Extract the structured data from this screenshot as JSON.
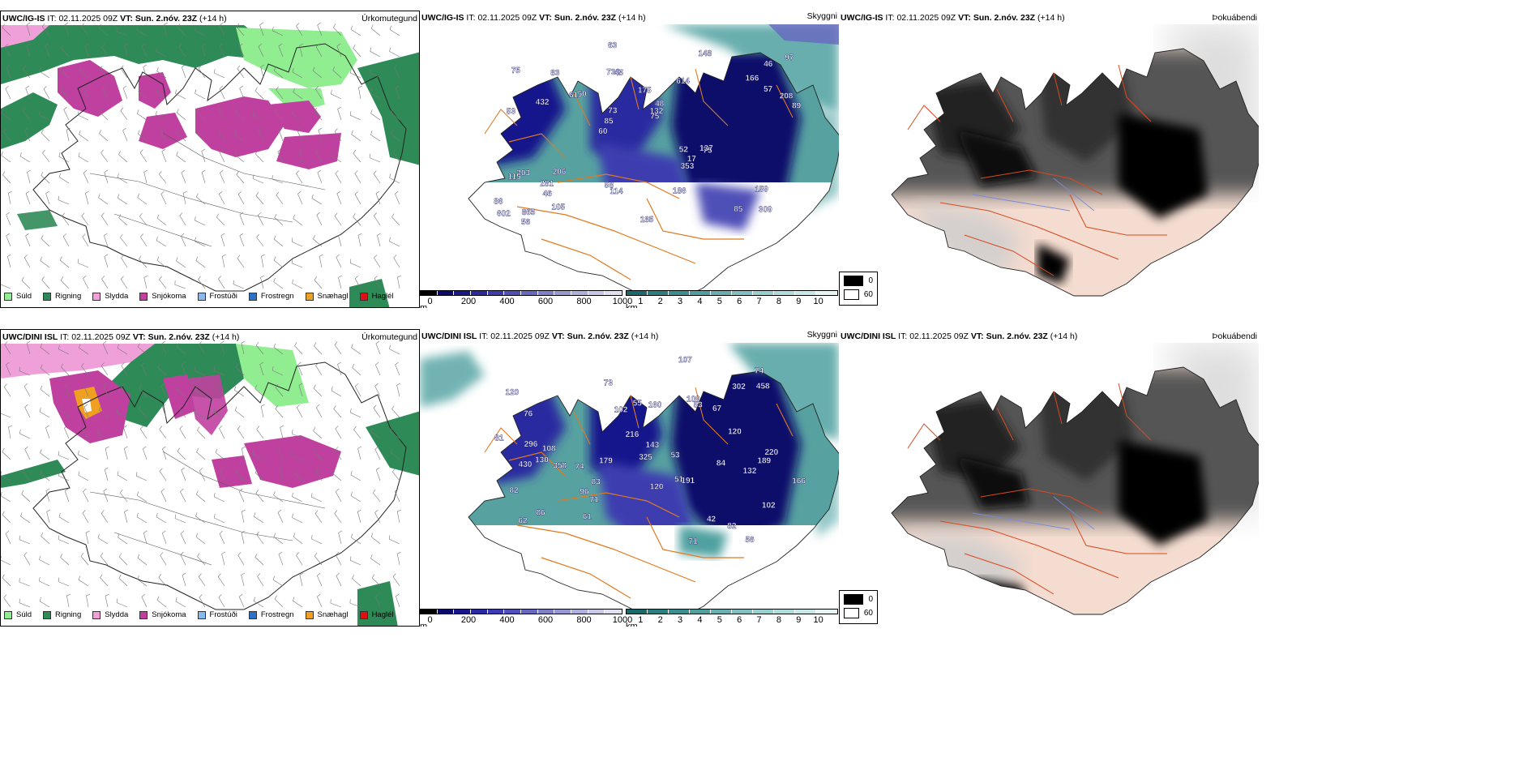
{
  "rows": [
    {
      "model": "UWC/IG-IS",
      "it_label": "IT:",
      "it_value": "02.11.2025 09Z",
      "vt_label": "VT:",
      "vt_value": "Sun. 2.nóv. 23Z",
      "lead": "(+14 h)"
    },
    {
      "model": "UWC/DINI ISL",
      "it_label": "IT:",
      "it_value": "02.11.2025 09Z",
      "vt_label": "VT:",
      "vt_value": "Sun. 2.nóv. 23Z",
      "lead": "(+14 h)"
    }
  ],
  "panels": {
    "precip_title": "Úrkomutegund",
    "cloud_title": "Skyggni",
    "fog_title": "Þokuábendi"
  },
  "precip_legend": [
    {
      "label": "Súld",
      "color": "#90ee90"
    },
    {
      "label": "Rigning",
      "color": "#2e8b57"
    },
    {
      "label": "Slydda",
      "color": "#f0a0d8"
    },
    {
      "label": "Snjókoma",
      "color": "#c040a0"
    },
    {
      "label": "Frostúði",
      "color": "#87b8f0"
    },
    {
      "label": "Frostregn",
      "color": "#3070c8"
    },
    {
      "label": "Snæhagl",
      "color": "#f0a020"
    },
    {
      "label": "Haglél",
      "color": "#e01010"
    }
  ],
  "ceiling_bar": {
    "unit": "m",
    "ticks": [
      "0",
      "200",
      "400",
      "600",
      "800",
      "1000"
    ],
    "colors": [
      "#000000",
      "#0a0a6a",
      "#18188c",
      "#2a2aa0",
      "#3c3cb0",
      "#5050b8",
      "#6868c0",
      "#8080c8",
      "#9898d0",
      "#b0b0dc",
      "#c8c8e6",
      "#e0e0f0"
    ]
  },
  "vis_bar": {
    "unit": "km",
    "ticks": [
      "1",
      "2",
      "3",
      "4",
      "5",
      "6",
      "7",
      "8",
      "9",
      "10"
    ],
    "colors": [
      "#1a6a6a",
      "#2a8080",
      "#3a9090",
      "#50a0a0",
      "#68b0b0",
      "#80c0c0",
      "#98d0d0",
      "#b0dcdc",
      "#c8e8e8",
      "#e6f4f4"
    ]
  },
  "fog_legend": [
    {
      "label": "0",
      "color": "#000000"
    },
    {
      "label": "60",
      "color": "#ffffff"
    }
  ],
  "ceiling_labels_top": [
    "309",
    "53",
    "46",
    "60",
    "614",
    "865",
    "736",
    "175",
    "303",
    "50",
    "86",
    "46",
    "45",
    "48",
    "75",
    "75",
    "63",
    "89",
    "52",
    "57",
    "85",
    "58",
    "73",
    "83",
    "148",
    "206",
    "85",
    "159",
    "137",
    "185",
    "61",
    "432",
    "353",
    "105",
    "208",
    "132",
    "602",
    "114",
    "75",
    "115",
    "166",
    "97",
    "17",
    "186",
    "281",
    "56"
  ],
  "ceiling_labels_bottom": [
    "56",
    "130",
    "51",
    "120",
    "102",
    "76",
    "86",
    "74",
    "67",
    "55",
    "53",
    "82",
    "71",
    "73",
    "53",
    "82",
    "84",
    "143",
    "81",
    "62",
    "74",
    "160",
    "120",
    "166",
    "220",
    "296",
    "358",
    "325",
    "216",
    "458",
    "191",
    "430",
    "96",
    "109",
    "102",
    "132",
    "189",
    "42",
    "302",
    "71",
    "83",
    "120",
    "61",
    "107",
    "179",
    "108"
  ]
}
